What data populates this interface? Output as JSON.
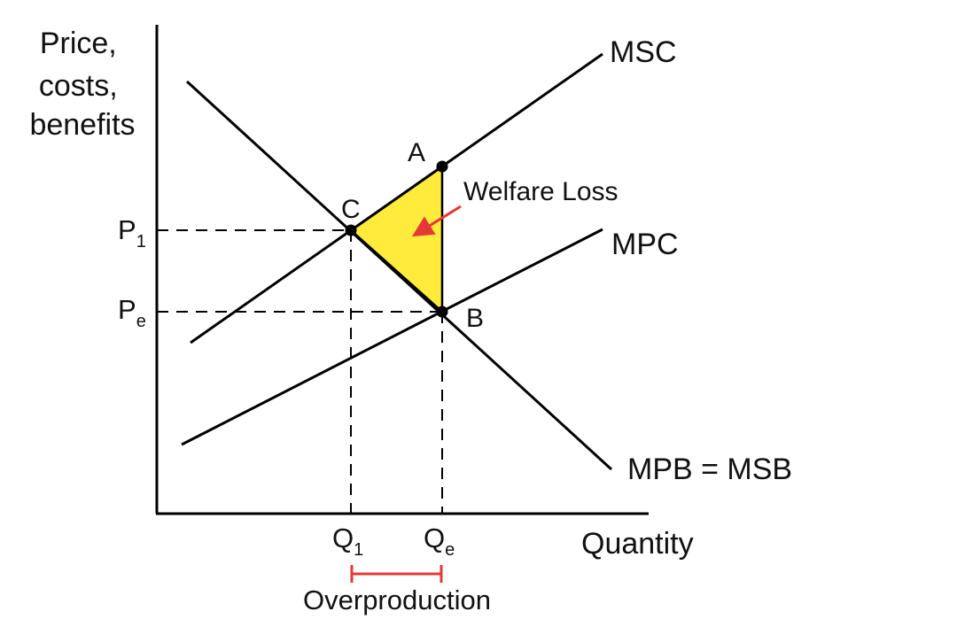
{
  "axes": {
    "y_label_lines": [
      "Price,",
      "costs,",
      "benefits"
    ],
    "x_label": "Quantity"
  },
  "curves": {
    "msc": "MSC",
    "mpc": "MPC",
    "demand": "MPB = MSB"
  },
  "points": {
    "a": "A",
    "b": "B",
    "c": "C"
  },
  "prices": {
    "p1": {
      "base": "P",
      "sub": "1"
    },
    "pe": {
      "base": "P",
      "sub": "e"
    }
  },
  "quantities": {
    "q1": {
      "base": "Q",
      "sub": "1"
    },
    "qe": {
      "base": "Q",
      "sub": "e"
    }
  },
  "annotations": {
    "welfare_loss": "Welfare Loss",
    "overproduction": "Overproduction"
  },
  "colors": {
    "welfare_fill": "#FFEB3B",
    "arrow": "#E53935",
    "bracket": "#E53935",
    "line": "#000000"
  }
}
